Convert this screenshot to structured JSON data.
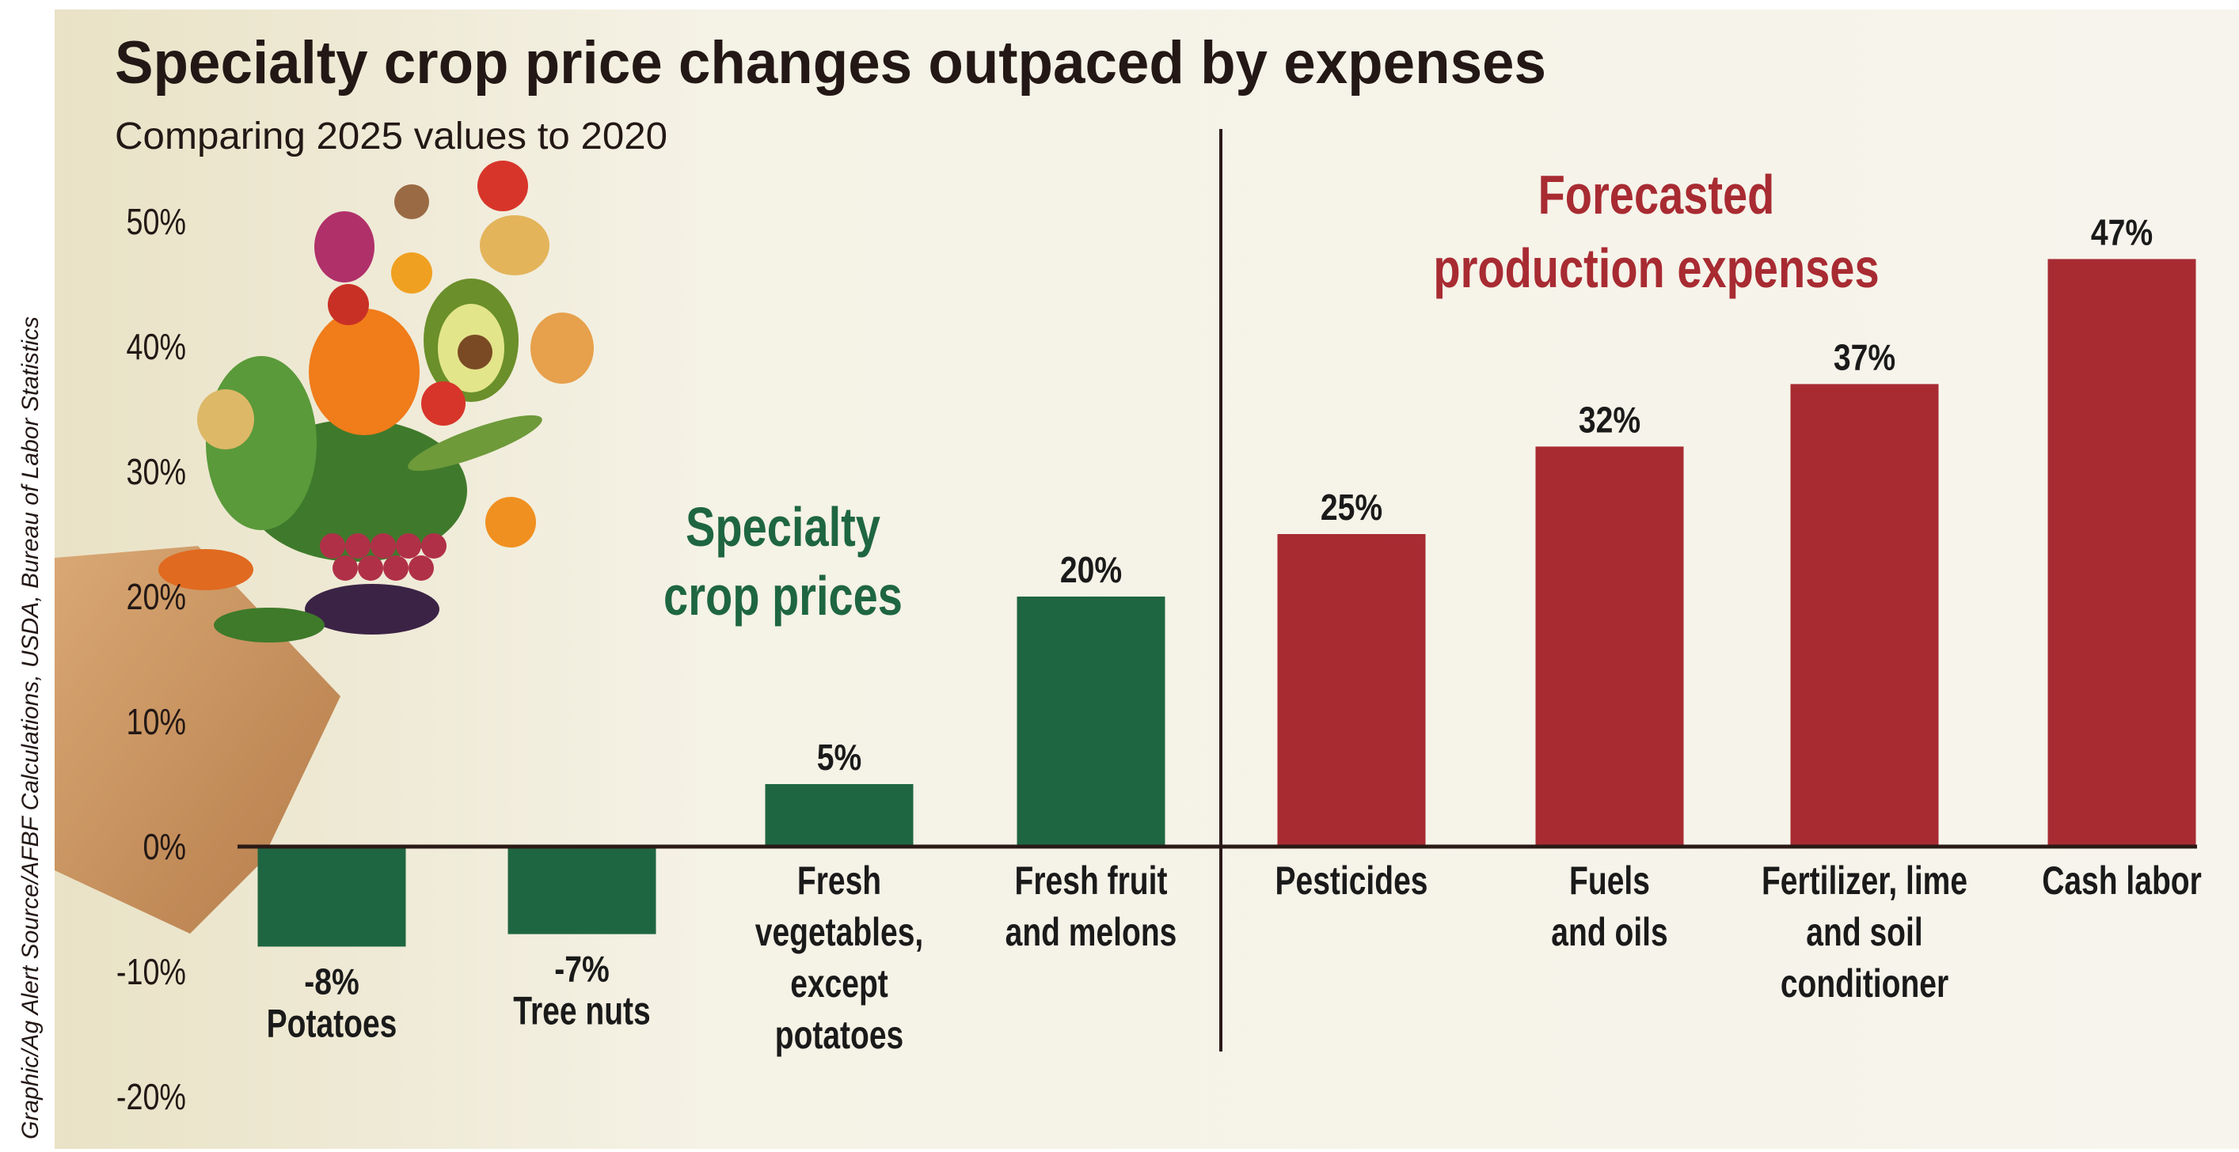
{
  "chart_data": {
    "type": "bar",
    "title": "Specialty crop price changes outpaced by expenses",
    "subtitle": "Comparing 2025 values to 2020",
    "source": "Graphic/Ag Alert    Source/AFBF Calculations, USDA, Bureau of Labor Statistics",
    "ylim": [
      -20,
      50
    ],
    "yticks": [
      -20,
      -10,
      0,
      10,
      20,
      30,
      40,
      50
    ],
    "ytick_labels": [
      "-20%",
      "-10%",
      "0%",
      "10%",
      "20%",
      "30%",
      "40%",
      "50%"
    ],
    "grid": false,
    "colors": {
      "specialty": "#1e6641",
      "expenses": "#a82b32",
      "text": "#231815",
      "background": "#f3efe1"
    },
    "groups": [
      {
        "key": "specialty",
        "label_lines": [
          "Specialty",
          "crop prices"
        ],
        "color": "#1e6641"
      },
      {
        "key": "expenses",
        "label_lines": [
          "Forecasted",
          "production expenses"
        ],
        "color": "#a82b32"
      }
    ],
    "bars": [
      {
        "category_lines": [
          "Potatoes"
        ],
        "value": -8,
        "value_label": "-8%",
        "group": "specialty"
      },
      {
        "category_lines": [
          "Tree nuts"
        ],
        "value": -7,
        "value_label": "-7%",
        "group": "specialty"
      },
      {
        "category_lines": [
          "Fresh",
          "vegetables,",
          "except",
          "potatoes"
        ],
        "value": 5,
        "value_label": "5%",
        "group": "specialty"
      },
      {
        "category_lines": [
          "Fresh fruit",
          "and melons"
        ],
        "value": 20,
        "value_label": "20%",
        "group": "specialty"
      },
      {
        "category_lines": [
          "Pesticides"
        ],
        "value": 25,
        "value_label": "25%",
        "group": "expenses"
      },
      {
        "category_lines": [
          "Fuels",
          "and oils"
        ],
        "value": 32,
        "value_label": "32%",
        "group": "expenses"
      },
      {
        "category_lines": [
          "Fertilizer, lime",
          "and soil",
          "conditioner"
        ],
        "value": 37,
        "value_label": "37%",
        "group": "expenses"
      },
      {
        "category_lines": [
          "Cash labor"
        ],
        "value": 47,
        "value_label": "47%",
        "group": "expenses"
      }
    ],
    "illustration": "vegetables-in-paper-bag"
  }
}
